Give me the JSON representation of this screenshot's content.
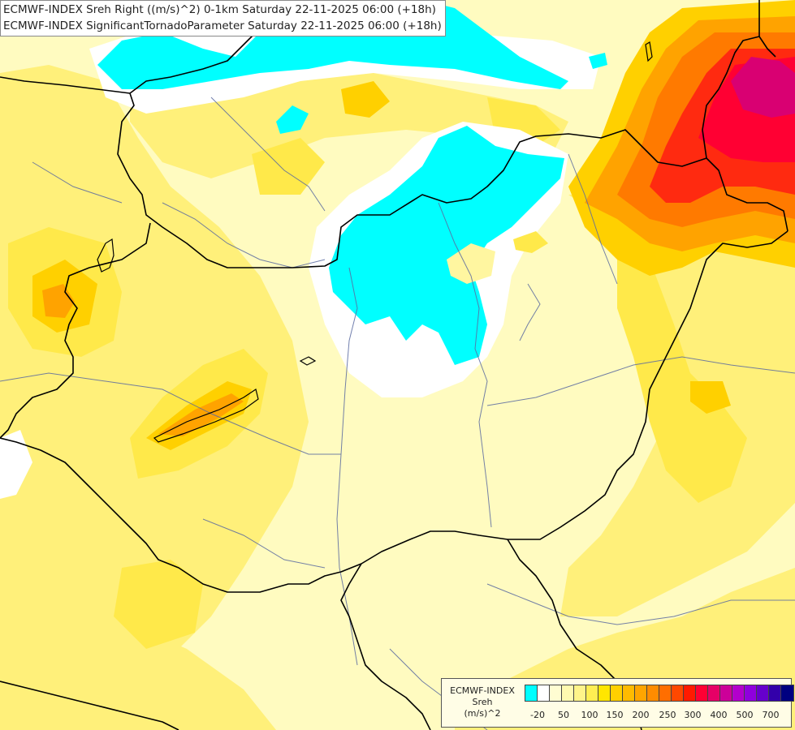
{
  "header": {
    "line1": "ECMWF-INDEX Sreh Right ((m/s)^2) 0-1km Saturday 22-11-2025 06:00 (+18h)",
    "line2": "ECMWF-INDEX SignificantTornadoParameter Saturday 22-11-2025 06:00 (+18h)"
  },
  "legend": {
    "line1": "ECMWF-INDEX",
    "line2": "Sreh",
    "line3": "(m/s)^2",
    "colors": [
      "#00ffff",
      "#ffffff",
      "#fffdd2",
      "#fffab0",
      "#fff48a",
      "#ffee52",
      "#ffe600",
      "#ffd000",
      "#ffbb00",
      "#ffa500",
      "#ff8c00",
      "#ff6e00",
      "#ff4800",
      "#ff1a00",
      "#ff0033",
      "#e60066",
      "#cc0099",
      "#b300cc",
      "#8f00dd",
      "#6600cc",
      "#3300aa",
      "#000080"
    ],
    "ticks": [
      "-20",
      "50",
      "100",
      "150",
      "200",
      "250",
      "300",
      "400",
      "500",
      "700"
    ]
  },
  "map": {
    "colors": {
      "cyan": "#00ffff",
      "white": "#ffffff",
      "pale": "#fffbc0",
      "light_yellow": "#fff6a0",
      "yellow": "#fff07a",
      "gold": "#ffe94a",
      "amber": "#ffd000",
      "orange": "#ffa300",
      "deep_orange": "#ff7a00",
      "red": "#ff2a10",
      "crimson": "#ff0033",
      "magenta": "#d90072",
      "border": "#000000",
      "river": "#5a6aa0"
    }
  }
}
